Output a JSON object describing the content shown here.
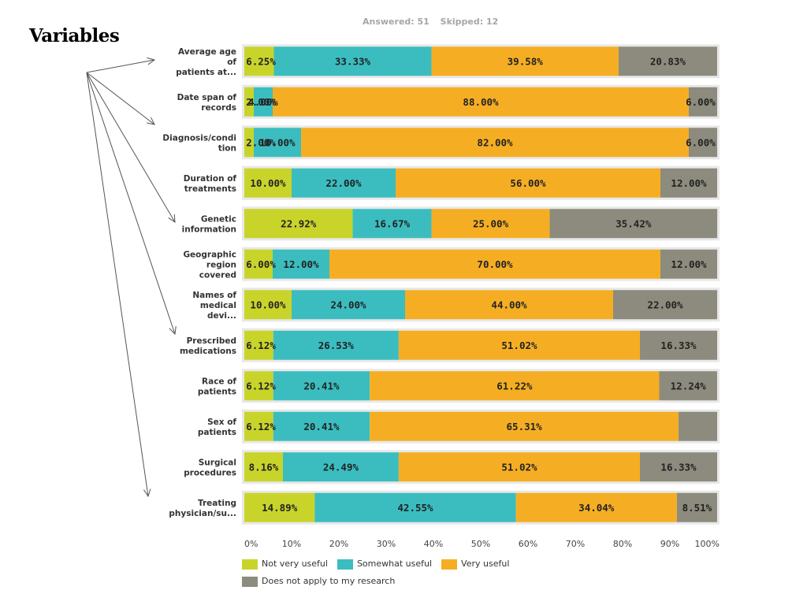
{
  "side_title": "Variables",
  "header": {
    "answered": "Answered: 51",
    "skipped": "Skipped: 12"
  },
  "chart_data": {
    "type": "bar",
    "orientation": "horizontal",
    "stacked": true,
    "categories": [
      [
        "Average age",
        "of",
        "patients at..."
      ],
      [
        "Date span of",
        "records"
      ],
      [
        "Diagnosis/condi",
        "tion"
      ],
      [
        "Duration of",
        "treatments"
      ],
      [
        "Genetic",
        "information"
      ],
      [
        "Geographic",
        "region",
        "covered"
      ],
      [
        "Names of",
        "medical",
        "devi..."
      ],
      [
        "Prescribed",
        "medications"
      ],
      [
        "Race of",
        "patients"
      ],
      [
        "Sex of",
        "patients"
      ],
      [
        "Surgical",
        "procedures"
      ],
      [
        "Treating",
        "physician/su..."
      ]
    ],
    "series": [
      {
        "name": "Not very useful",
        "color": "#c9d42b",
        "values": [
          6.25,
          2.0,
          2.0,
          10.0,
          22.92,
          6.0,
          10.0,
          6.12,
          6.12,
          6.12,
          8.16,
          14.89
        ],
        "labels": [
          "6.25%",
          "2.00%",
          "2.00%",
          "10.00%",
          "22.92%",
          "6.00%",
          "10.00%",
          "6.12%",
          "6.12%",
          "6.12%",
          "8.16%",
          "14.89%"
        ]
      },
      {
        "name": "Somewhat useful",
        "color": "#3bbdc0",
        "values": [
          33.33,
          4.0,
          10.0,
          22.0,
          16.67,
          12.0,
          24.0,
          26.53,
          20.41,
          20.41,
          24.49,
          42.55
        ],
        "labels": [
          "33.33%",
          "4.00%",
          "10.00%",
          "22.00%",
          "16.67%",
          "12.00%",
          "24.00%",
          "26.53%",
          "20.41%",
          "20.41%",
          "24.49%",
          "42.55%"
        ]
      },
      {
        "name": "Very useful",
        "color": "#f5ae23",
        "values": [
          39.58,
          88.0,
          82.0,
          56.0,
          25.0,
          70.0,
          44.0,
          51.02,
          61.22,
          65.31,
          51.02,
          34.04
        ],
        "labels": [
          "39.58%",
          "88.00%",
          "82.00%",
          "56.00%",
          "25.00%",
          "70.00%",
          "44.00%",
          "51.02%",
          "61.22%",
          "65.31%",
          "51.02%",
          "34.04%"
        ]
      },
      {
        "name": "Does not apply to my research",
        "color": "#8c8b7d",
        "values": [
          20.83,
          6.0,
          6.0,
          12.0,
          35.42,
          12.0,
          22.0,
          16.33,
          12.24,
          8.16,
          16.33,
          8.51
        ],
        "labels": [
          "20.83%",
          "6.00%",
          "6.00%",
          "12.00%",
          "35.42%",
          "12.00%",
          "22.00%",
          "16.33%",
          "12.24%",
          "",
          "16.33%",
          "8.51%"
        ]
      }
    ],
    "x_ticks": [
      "0%",
      "10%",
      "20%",
      "30%",
      "40%",
      "50%",
      "60%",
      "70%",
      "80%",
      "90%",
      "100%"
    ],
    "xlim": [
      0,
      100
    ],
    "grid": false,
    "legend_position": "bottom",
    "row_band_color": "#e8e8e8",
    "annotations": [
      {
        "type": "arrows",
        "from": "side_title",
        "to": "category_labels"
      }
    ]
  }
}
